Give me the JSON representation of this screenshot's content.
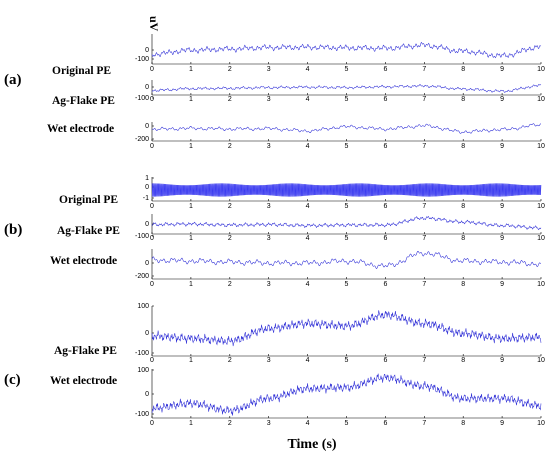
{
  "figure": {
    "unit_label": "uV",
    "xlabel": "Time (s)",
    "panels": [
      {
        "label": "(a)"
      },
      {
        "label": "(b)"
      },
      {
        "label": "(c)"
      }
    ],
    "trace_color": "#2b2bd6",
    "band_color": "#3a3af0"
  },
  "chart_data": [
    {
      "type": "line",
      "panel": "(a)",
      "name": "Original PE",
      "xlim": [
        0,
        10
      ],
      "x_ticks": [
        "0",
        "1",
        "2",
        "3",
        "4",
        "5",
        "6",
        "7",
        "8",
        "9",
        "10"
      ],
      "ylim": [
        -100,
        100
      ],
      "y_ticks": [
        "0",
        "-100"
      ],
      "x": [
        0,
        1,
        2,
        3,
        4,
        5,
        6,
        7,
        8,
        9,
        10
      ],
      "y": [
        -35,
        -8,
        0,
        10,
        12,
        8,
        5,
        25,
        -15,
        -45,
        15
      ]
    },
    {
      "type": "line",
      "panel": "(a)",
      "name": "Ag-Flake PE",
      "xlim": [
        0,
        10
      ],
      "x_ticks": [
        "0",
        "1",
        "2",
        "3",
        "4",
        "5",
        "6",
        "7",
        "8",
        "9",
        "10"
      ],
      "ylim": [
        -100,
        100
      ],
      "y_ticks": [
        "0",
        "-100"
      ],
      "x": [
        0,
        1,
        2,
        3,
        4,
        5,
        6,
        7,
        8,
        9,
        10
      ],
      "y": [
        -40,
        -15,
        -10,
        0,
        5,
        0,
        10,
        20,
        -20,
        -50,
        25
      ]
    },
    {
      "type": "line",
      "panel": "(a)",
      "name": "Wet electrode",
      "xlim": [
        0,
        10
      ],
      "x_ticks": [
        "0",
        "1",
        "2",
        "3",
        "4",
        "5",
        "6",
        "7",
        "8",
        "9",
        "10"
      ],
      "ylim": [
        -200,
        100
      ],
      "y_ticks": [
        "0",
        "-200"
      ],
      "x": [
        0,
        1,
        2,
        3,
        4,
        5,
        6,
        7,
        8,
        9,
        10
      ],
      "y": [
        -15,
        0,
        -10,
        -5,
        -40,
        25,
        -10,
        40,
        -55,
        -20,
        55
      ]
    },
    {
      "type": "line",
      "panel": "(b)",
      "name": "Original PE",
      "xlim": [
        0,
        10
      ],
      "x_ticks": [
        "0",
        "1",
        "2",
        "3",
        "4",
        "5",
        "6",
        "7",
        "8",
        "9",
        "10"
      ],
      "ylim": [
        -1,
        1
      ],
      "y_ticks": [
        "1",
        "0",
        "-1"
      ],
      "x": [
        0,
        10
      ],
      "y": [
        -0.55,
        0.55
      ]
    },
    {
      "type": "line",
      "panel": "(b)",
      "name": "Ag-Flake PE",
      "xlim": [
        0,
        10
      ],
      "x_ticks": [
        "0",
        "1",
        "2",
        "3",
        "4",
        "5",
        "6",
        "7",
        "8",
        "9",
        "10"
      ],
      "ylim": [
        -100,
        100
      ],
      "y_ticks": [
        "0",
        "-100"
      ],
      "x": [
        0,
        1,
        2,
        3,
        4,
        5,
        6,
        7,
        8,
        9,
        10
      ],
      "y": [
        -5,
        0,
        -10,
        -5,
        -15,
        -10,
        -10,
        60,
        20,
        -15,
        -40
      ]
    },
    {
      "type": "line",
      "panel": "(b)",
      "name": "Wet electrode",
      "xlim": [
        0,
        10
      ],
      "x_ticks": [
        "0",
        "1",
        "2",
        "3",
        "4",
        "5",
        "6",
        "7",
        "8",
        "9",
        "10"
      ],
      "ylim": [
        -200,
        100
      ],
      "y_ticks": [
        "0",
        "-200"
      ],
      "x": [
        0,
        1,
        2,
        3,
        4,
        5,
        6,
        7,
        8,
        9,
        10
      ],
      "y": [
        -10,
        -20,
        -30,
        -40,
        -40,
        -20,
        -70,
        60,
        -20,
        -30,
        -50
      ]
    },
    {
      "type": "line",
      "panel": "(c)",
      "name": "Ag-Flake PE",
      "xlim": [
        0,
        10
      ],
      "x_ticks": [
        "0",
        "1",
        "2",
        "3",
        "4",
        "5",
        "6",
        "7",
        "8",
        "9",
        "10"
      ],
      "ylim": [
        -100,
        100
      ],
      "y_ticks": [
        "100",
        "0",
        "-100"
      ],
      "x": [
        0,
        1,
        2,
        3,
        4,
        5,
        6,
        7,
        8,
        9,
        10
      ],
      "y": [
        -20,
        -30,
        -40,
        10,
        30,
        20,
        65,
        30,
        -10,
        -30,
        -25
      ]
    },
    {
      "type": "line",
      "panel": "(c)",
      "name": "Wet electrode",
      "xlim": [
        0,
        10
      ],
      "x_ticks": [
        "0",
        "1",
        "2",
        "3",
        "4",
        "5",
        "6",
        "7",
        "8",
        "9",
        "10"
      ],
      "ylim": [
        -100,
        100
      ],
      "y_ticks": [
        "100",
        "0",
        "-100"
      ],
      "x": [
        0,
        1,
        2,
        3,
        4,
        5,
        6,
        7,
        8,
        9,
        10
      ],
      "y": [
        -60,
        -40,
        -70,
        -20,
        20,
        25,
        65,
        30,
        -20,
        -20,
        -50
      ]
    }
  ]
}
